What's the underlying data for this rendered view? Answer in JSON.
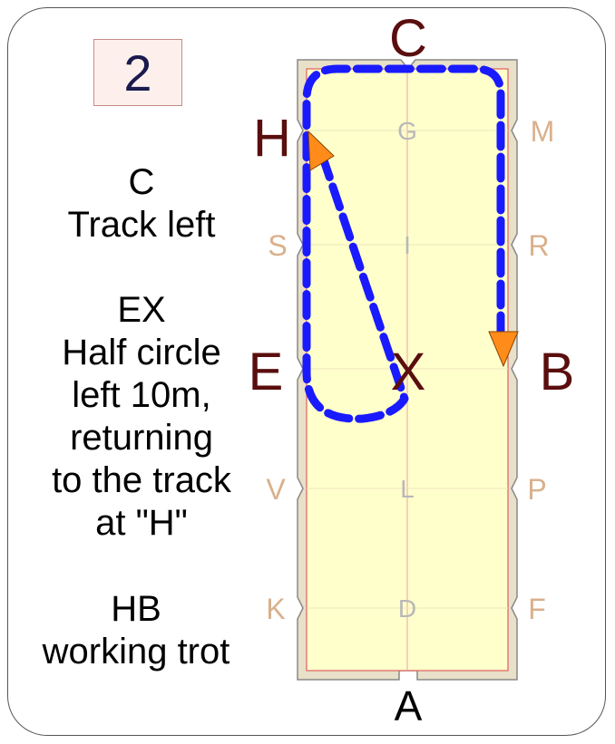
{
  "test_number": "2",
  "instructions": [
    {
      "lines": [
        "C",
        "Track left"
      ]
    },
    {
      "lines": [
        "EX",
        "Half circle",
        "left 10m,",
        "returning",
        "to the track",
        "at \"H\""
      ]
    },
    {
      "lines": [
        "HB",
        "working trot"
      ]
    }
  ],
  "arena": {
    "letters_major": {
      "H": "H",
      "E": "E",
      "B": "B",
      "X": "X"
    },
    "letter_C": "C",
    "letter_A": "A",
    "letters_side": {
      "M": "M",
      "R": "R",
      "S": "S",
      "V": "V",
      "P": "P",
      "K": "K",
      "F": "F"
    },
    "letters_centerline": {
      "G": "G",
      "I": "I",
      "L": "L",
      "D": "D"
    },
    "colors": {
      "fence": "#e8e0c8",
      "surface": "#ffffcc",
      "line": "#e06060",
      "path": "#1a1aff",
      "arrow": "#ff8c1a",
      "major_letter": "#5a0e0e",
      "side_letter": "#d9b08c",
      "centerline_letter": "#b8b8b8"
    }
  }
}
